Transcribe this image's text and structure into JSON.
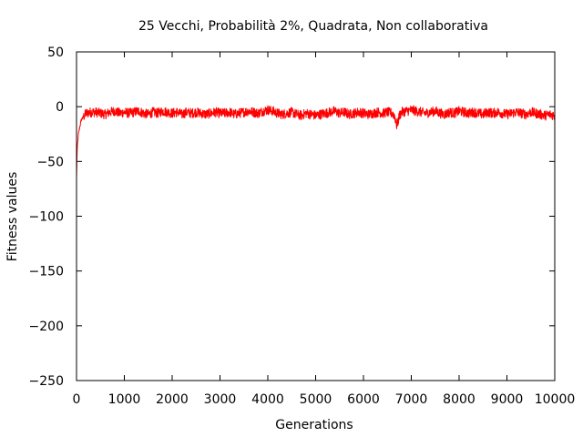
{
  "chart_data": {
    "type": "line",
    "title": "25 Vecchi, Probabilità 2%, Quadrata, Non collaborativa",
    "xlabel": "Generations",
    "ylabel": "Fitness values",
    "xlim": [
      0,
      10000
    ],
    "ylim": [
      -250,
      50
    ],
    "x_ticks": [
      0,
      1000,
      2000,
      3000,
      4000,
      5000,
      6000,
      7000,
      8000,
      9000,
      10000
    ],
    "y_ticks": [
      50,
      0,
      -50,
      -100,
      -150,
      -200,
      -250
    ],
    "grid": false,
    "legend": "none",
    "series": [
      {
        "color": "#ff0000",
        "x": [
          0,
          10,
          20,
          40,
          70,
          100,
          150,
          200,
          300,
          400,
          500,
          600,
          700,
          800,
          900,
          1000,
          1100,
          1200,
          1300,
          1400,
          1500,
          1600,
          1700,
          1800,
          1900,
          2000,
          2100,
          2200,
          2300,
          2400,
          2500,
          2600,
          2700,
          2800,
          2900,
          3000,
          3100,
          3200,
          3300,
          3400,
          3500,
          3600,
          3700,
          3800,
          3900,
          4000,
          4100,
          4200,
          4300,
          4400,
          4500,
          4600,
          4700,
          4800,
          4900,
          5000,
          5100,
          5200,
          5300,
          5400,
          5500,
          5600,
          5700,
          5800,
          5900,
          6000,
          6100,
          6200,
          6300,
          6400,
          6500,
          6600,
          6650,
          6700,
          6720,
          6750,
          6800,
          6900,
          7000,
          7100,
          7200,
          7300,
          7400,
          7500,
          7600,
          7700,
          7800,
          7900,
          8000,
          8100,
          8200,
          8300,
          8400,
          8500,
          8600,
          8700,
          8800,
          8900,
          9000,
          9100,
          9200,
          9300,
          9400,
          9500,
          9600,
          9700,
          9800,
          9900,
          10000
        ],
        "y": [
          -65,
          -45,
          -35,
          -25,
          -18,
          -12,
          -9,
          -6,
          -5,
          -5,
          -6,
          -7,
          -5,
          -4,
          -6,
          -5,
          -6,
          -5,
          -4,
          -6,
          -7,
          -5,
          -6,
          -4,
          -5,
          -6,
          -5,
          -7,
          -5,
          -6,
          -5,
          -6,
          -7,
          -6,
          -5,
          -6,
          -6,
          -5,
          -7,
          -6,
          -5,
          -4,
          -5,
          -6,
          -4,
          -3,
          -4,
          -6,
          -7,
          -6,
          -5,
          -7,
          -8,
          -6,
          -7,
          -8,
          -7,
          -6,
          -5,
          -4,
          -6,
          -5,
          -7,
          -6,
          -5,
          -6,
          -7,
          -6,
          -5,
          -6,
          -5,
          -6,
          -8,
          -18,
          -14,
          -8,
          -5,
          -4,
          -3,
          -4,
          -5,
          -6,
          -5,
          -4,
          -6,
          -7,
          -5,
          -6,
          -4,
          -5,
          -6,
          -5,
          -6,
          -7,
          -5,
          -6,
          -5,
          -6,
          -7,
          -6,
          -5,
          -6,
          -7,
          -5,
          -6,
          -7,
          -8,
          -7,
          -8
        ]
      }
    ]
  }
}
